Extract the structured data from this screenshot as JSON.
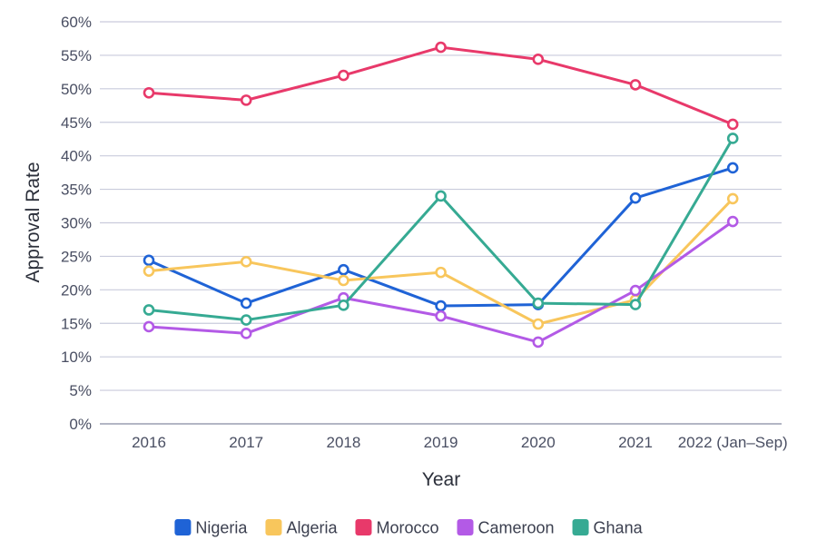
{
  "chart_data": {
    "type": "line",
    "xlabel": "Year",
    "ylabel": "Approval Rate",
    "categories": [
      "2016",
      "2017",
      "2018",
      "2019",
      "2020",
      "2021",
      "2022 (Jan–Sep)"
    ],
    "ylim": [
      0,
      60
    ],
    "yticks": [
      0,
      5,
      10,
      15,
      20,
      25,
      30,
      35,
      40,
      45,
      50,
      55,
      60
    ],
    "ytick_suffix": "%",
    "grid": "horizontal",
    "legend_position": "bottom",
    "series": [
      {
        "name": "Nigeria",
        "color": "#1f63d6",
        "values": [
          24.4,
          18.0,
          23.0,
          17.6,
          17.8,
          33.7,
          38.2
        ]
      },
      {
        "name": "Algeria",
        "color": "#f8c65c",
        "values": [
          22.8,
          24.2,
          21.4,
          22.6,
          14.9,
          18.5,
          33.6
        ]
      },
      {
        "name": "Morocco",
        "color": "#e8396a",
        "values": [
          49.4,
          48.3,
          52.0,
          56.2,
          54.4,
          50.6,
          44.7
        ]
      },
      {
        "name": "Cameroon",
        "color": "#b35ae6",
        "values": [
          14.5,
          13.5,
          18.8,
          16.1,
          12.2,
          19.9,
          30.2
        ]
      },
      {
        "name": "Ghana",
        "color": "#36aa93",
        "values": [
          17.0,
          15.5,
          17.7,
          34.0,
          18.0,
          17.8,
          42.6
        ]
      }
    ]
  }
}
